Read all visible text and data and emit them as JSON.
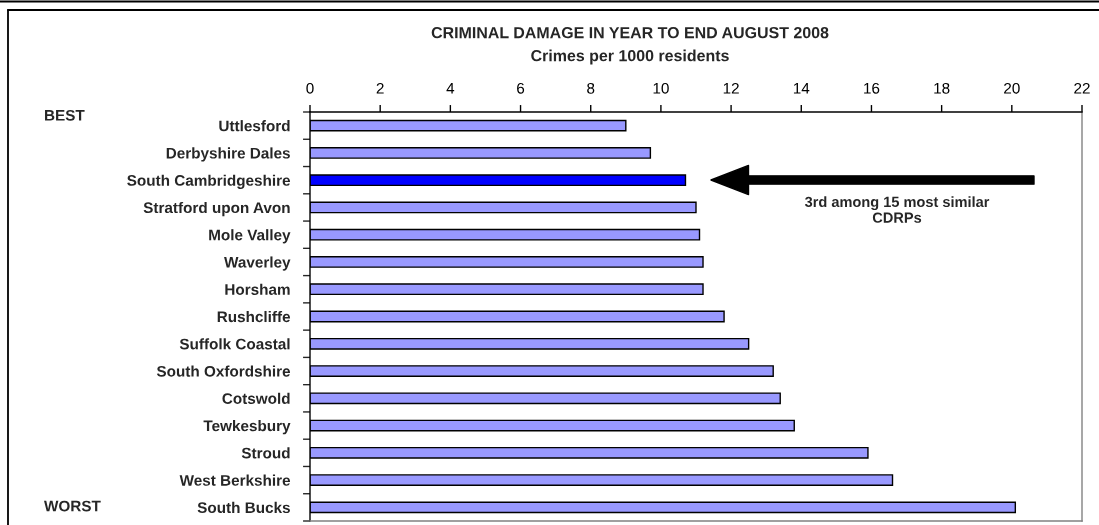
{
  "chart_data": {
    "type": "bar",
    "orientation": "horizontal",
    "title": "CRIMINAL DAMAGE IN YEAR TO END AUGUST 2008",
    "subtitle": "Crimes per 1000 residents",
    "categories": [
      "Uttlesford",
      "Derbyshire Dales",
      "South Cambridgeshire",
      "Stratford upon Avon",
      "Mole Valley",
      "Waverley",
      "Horsham",
      "Rushcliffe",
      "Suffolk Coastal",
      "South Oxfordshire",
      "Cotswold",
      "Tewkesbury",
      "Stroud",
      "West Berkshire",
      "South Bucks"
    ],
    "values": [
      9.0,
      9.7,
      10.7,
      11.0,
      11.1,
      11.2,
      11.2,
      11.8,
      12.5,
      13.2,
      13.4,
      13.8,
      15.9,
      16.6,
      20.1
    ],
    "colors": [
      "#9999ff",
      "#9999ff",
      "#0000ff",
      "#9999ff",
      "#9999ff",
      "#9999ff",
      "#9999ff",
      "#9999ff",
      "#9999ff",
      "#9999ff",
      "#9999ff",
      "#9999ff",
      "#9999ff",
      "#9999ff",
      "#9999ff"
    ],
    "xlim": [
      0,
      22
    ],
    "xticks": [
      0,
      2,
      4,
      6,
      8,
      10,
      12,
      14,
      16,
      18,
      20,
      22
    ],
    "annotations": [
      "BEST",
      "WORST",
      "3rd among 15 most similar\nCDRPs"
    ]
  }
}
